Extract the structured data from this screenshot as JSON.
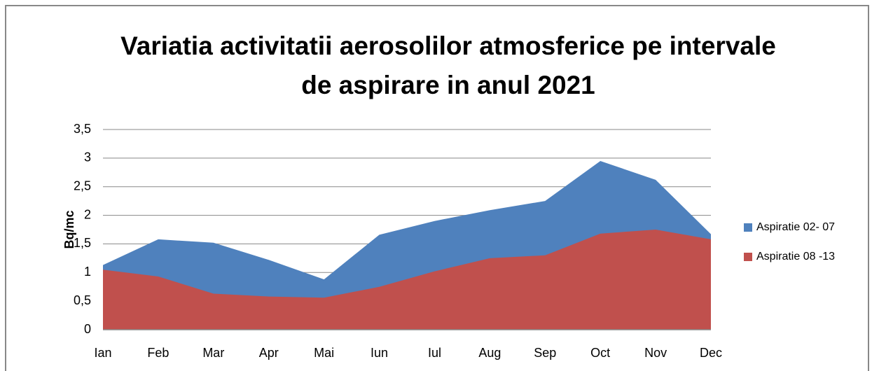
{
  "chart_data": {
    "type": "area",
    "title": "Variatia activitatii aerosolilor atmosferice pe intervale de aspirare in anul 2021",
    "ylabel": "Bq/mc",
    "categories": [
      "Ian",
      "Feb",
      "Mar",
      "Apr",
      "Mai",
      "Iun",
      "Iul",
      "Aug",
      "Sep",
      "Oct",
      "Nov",
      "Dec"
    ],
    "series": [
      {
        "name": "Aspiratie 02- 07",
        "color": "#4f81bd",
        "values": [
          1.13,
          1.58,
          1.52,
          1.22,
          0.88,
          1.66,
          1.9,
          2.09,
          2.25,
          2.95,
          2.62,
          1.67
        ]
      },
      {
        "name": "Aspiratie 08 -13",
        "color": "#c0504d",
        "values": [
          1.05,
          0.93,
          0.63,
          0.58,
          0.56,
          0.75,
          1.02,
          1.25,
          1.3,
          1.68,
          1.75,
          1.58
        ]
      }
    ],
    "ylim": [
      0,
      3.5
    ],
    "yticks": [
      0,
      {
        "value": 0.5,
        "label": "0,5"
      },
      1,
      {
        "value": 1.5,
        "label": "1,5"
      },
      2,
      {
        "value": 2.5,
        "label": "2,5"
      },
      3,
      {
        "value": 3.5,
        "label": "3,5"
      }
    ],
    "grid": true,
    "legend": "right"
  }
}
